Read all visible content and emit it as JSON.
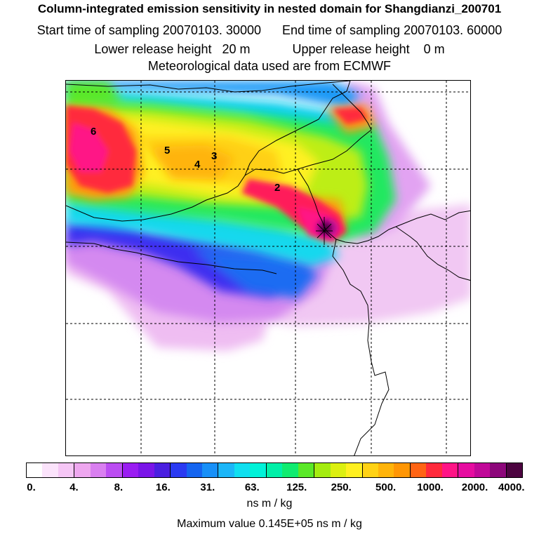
{
  "title": "Column-integrated emission sensitivity in nested domain for Shangdianzi_200701",
  "sampling": {
    "start": "Start time of sampling 20070103. 30000",
    "end": "End time of sampling 20070103. 60000"
  },
  "release": {
    "lower": "Lower release height   20 m",
    "upper": "Upper release height    0 m"
  },
  "met_note": "Meteorological data used are from ECMWF",
  "map": {
    "day_labels": [
      "6",
      "5",
      "4",
      "3",
      "2"
    ],
    "site_marker": "station-star",
    "grid_lines": "dashed"
  },
  "colorbar": {
    "colors": [
      "#ffffff",
      "#fbe3fb",
      "#f5c6f5",
      "#eea7ef",
      "#d97ff0",
      "#bb4df2",
      "#9a1df2",
      "#7a15e8",
      "#4a1fe0",
      "#2a3af2",
      "#1565f0",
      "#1890f8",
      "#1cb6f8",
      "#10dff0",
      "#00f2d8",
      "#00f0a8",
      "#10ec70",
      "#5ae828",
      "#a4ec10",
      "#dcf010",
      "#fff020",
      "#ffd214",
      "#ffb40a",
      "#ff9605",
      "#ff6414",
      "#ff2a3c",
      "#ff1486",
      "#e60ca0",
      "#c00898",
      "#8c067a",
      "#4c0440"
    ],
    "tick_labels": [
      "0.",
      "4.",
      "8.",
      "16.",
      "31.",
      "63.",
      "125.",
      "250.",
      "500.",
      "1000.",
      "2000.",
      "4000."
    ],
    "unit": "ns m / kg"
  },
  "max_value": "Maximum value  0.145E+05 ns m / kg"
}
